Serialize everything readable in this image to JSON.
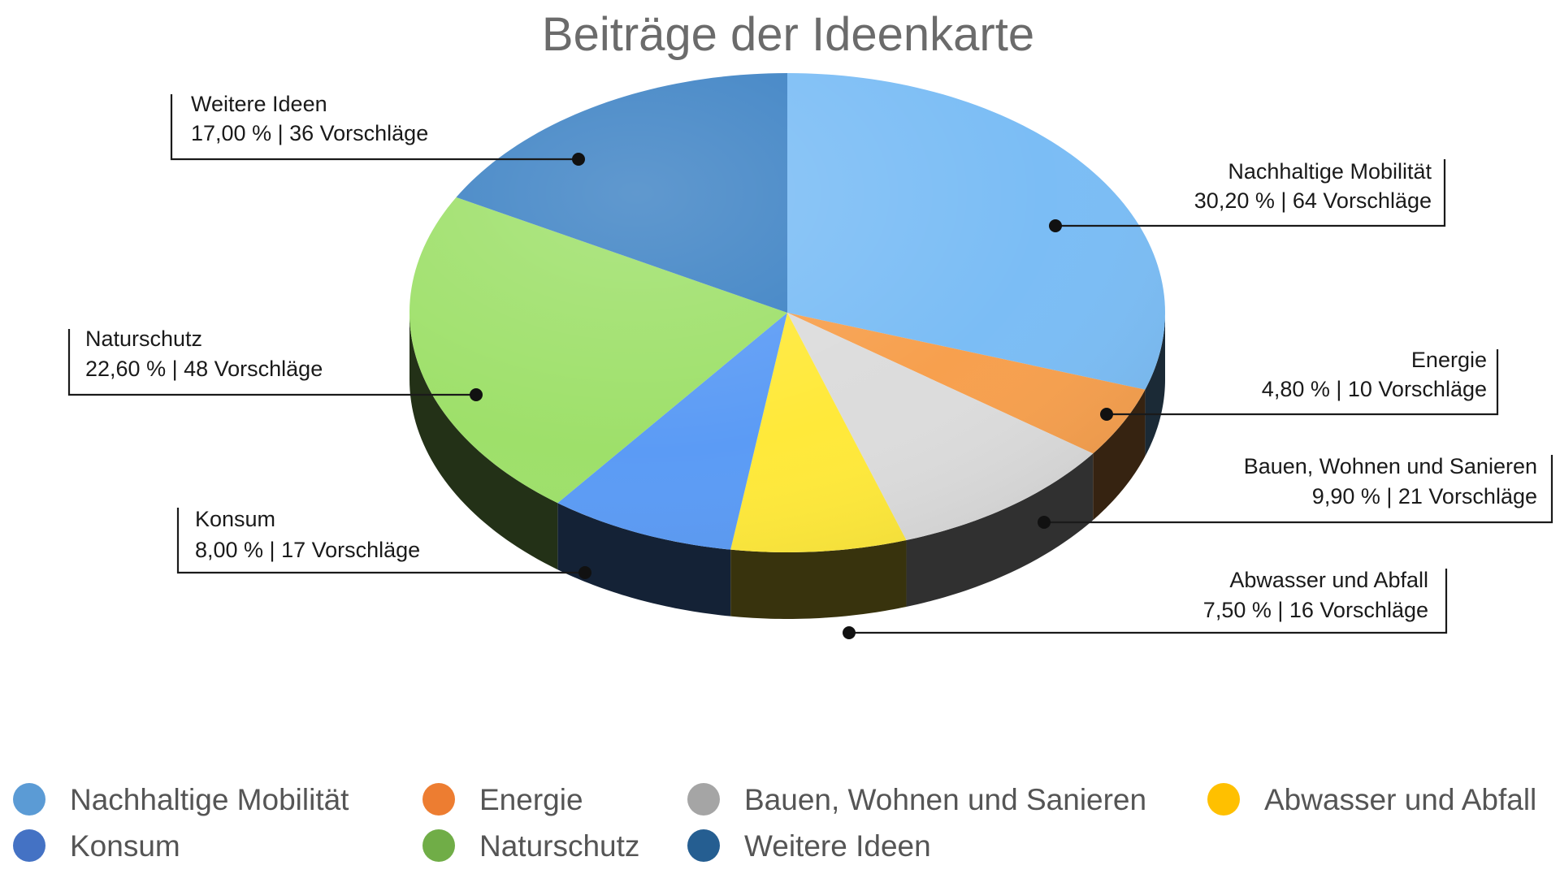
{
  "chart_data": {
    "type": "pie",
    "title": "Beiträge der Ideenkarte",
    "slices": [
      {
        "label": "Nachhaltige Mobilität",
        "value": 30.2,
        "percent_text": "30,20 %",
        "count": 64,
        "count_text": "64 Vorschläge",
        "color": "#7bbdf5",
        "legend_color": "#5b9bd5"
      },
      {
        "label": "Energie",
        "value": 4.8,
        "percent_text": "4,80 %",
        "count": 10,
        "count_text": "10 Vorschläge",
        "color": "#f7a04e",
        "legend_color": "#ed7d31"
      },
      {
        "label": "Bauen, Wohnen und Sanieren",
        "value": 9.9,
        "percent_text": "9,90 %",
        "count": 21,
        "count_text": "21 Vorschläge",
        "color": "#dcdcdc",
        "legend_color": "#a5a5a5"
      },
      {
        "label": "Abwasser und Abfall",
        "value": 7.5,
        "percent_text": "7,50 %",
        "count": 16,
        "count_text": "16 Vorschläge",
        "color": "#ffe93a",
        "legend_color": "#ffc000"
      },
      {
        "label": "Konsum",
        "value": 8.0,
        "percent_text": "8,00 %",
        "count": 17,
        "count_text": "17 Vorschläge",
        "color": "#5b9bf5",
        "legend_color": "#4472c4"
      },
      {
        "label": "Naturschutz",
        "value": 22.6,
        "percent_text": "22,60 %",
        "count": 48,
        "count_text": "48 Vorschläge",
        "color": "#9ee06a",
        "legend_color": "#70ad47"
      },
      {
        "label": "Weitere Ideen",
        "value": 17.0,
        "percent_text": "17,00 %",
        "count": 36,
        "count_text": "36 Vorschläge",
        "color": "#3d82c4",
        "legend_color": "#255e91"
      }
    ],
    "legend_position": "bottom",
    "legend": [
      "Nachhaltige Mobilität",
      "Energie",
      "Bauen, Wohnen und Sanieren",
      "Abwasser und Abfall",
      "Konsum",
      "Naturschutz",
      "Weitere Ideen"
    ]
  }
}
